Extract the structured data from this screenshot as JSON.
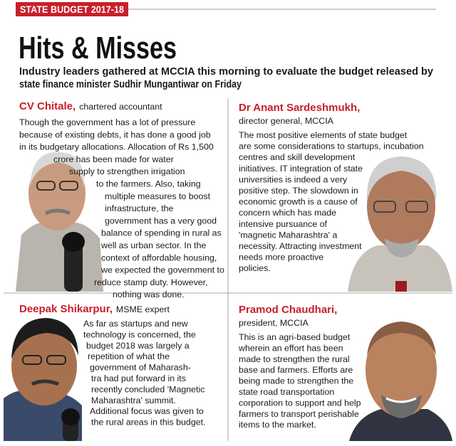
{
  "header": {
    "tag": "STATE BUDGET 2017-18",
    "title": "Hits & Misses",
    "subtitle": [
      "Industry leaders gathered at MCCIA this morning to evaluate the budget released by",
      "state finance minister Sudhir Mungantiwar on Friday"
    ]
  },
  "panels": [
    {
      "name": "CV Chitale,",
      "role": "chartered accountant",
      "body": [
        "Though the government has a lot of pressure",
        "because of existing debts, it has done a good job",
        "in its budgetary allocations. Allocation of Rs 1,500",
        "crore has been made for water",
        "supply to strengthen irrigation",
        "to the farmers. Also, taking",
        "multiple measures to boost",
        "infrastructure, the",
        "government has a very good",
        "balance of spending in rural as",
        "well as urban sector. In the",
        "context of affordable housing,",
        "we expected the government to",
        "reduce stamp duty. However,",
        "nothing was done."
      ]
    },
    {
      "name": "Dr Anant Sardeshmukh,",
      "role": "director general, MCCIA",
      "body": [
        "The most positive elements of state budget",
        "are some considerations to startups, incubation",
        "centres and skill development",
        "initiatives. IT integration of state",
        "universities is indeed a very",
        "positive step. The slowdown in",
        "economic growth is a cause of",
        "concern which has made",
        "intensive pursuance of",
        "'magnetic Maharashtra' a",
        "necessity. Attracting investment",
        "needs more proactive",
        "policies."
      ]
    },
    {
      "name": "Deepak Shikarpur,",
      "role": "MSME expert",
      "body": [
        "As far as startups and new",
        "technology is concerned, the",
        "budget 2018 was largely a",
        "repetition of what the",
        "government of Maharash-",
        "tra had put forward in its",
        "recently concluded 'Magnetic",
        "Maharashtra' summit.",
        "Additional focus was given to",
        "the rural areas in this budget."
      ]
    },
    {
      "name": "Pramod Chaudhari,",
      "role": "president, MCCIA",
      "body": [
        "This is an agri-based budget",
        "wherein an effort has been",
        "made to strengthen the rural",
        "base and farmers. Efforts are",
        "being made to strengthen the",
        "state road transportation",
        "corporation to support and help",
        "farmers to transport perishable",
        "items to the market."
      ]
    }
  ]
}
